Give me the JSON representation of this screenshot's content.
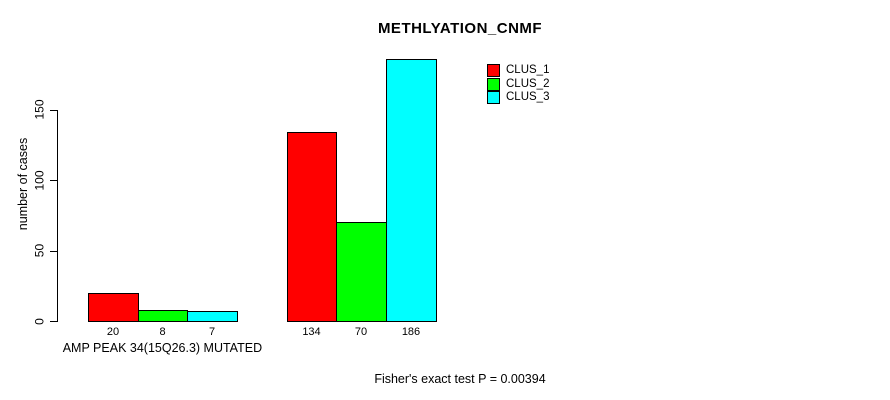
{
  "title": "METHLYATION_CNMF",
  "footer": "Fisher's exact test P = 0.00394",
  "chart_data": {
    "type": "bar",
    "title": "METHLYATION_CNMF",
    "ylabel": "number of cases",
    "xlabel": "",
    "categories": [
      "AMP PEAK 34(15Q26.3) MUTATED",
      ""
    ],
    "series": [
      {
        "name": "CLUS_1",
        "color": "#ff0000",
        "values": [
          20,
          134
        ]
      },
      {
        "name": "CLUS_2",
        "color": "#00ff00",
        "values": [
          8,
          70
        ]
      },
      {
        "name": "CLUS_3",
        "color": "#00ffff",
        "values": [
          7,
          186
        ]
      }
    ],
    "bar_value_labels": [
      [
        20,
        8,
        7
      ],
      [
        134,
        70,
        186
      ]
    ],
    "yticks": [
      0,
      50,
      100,
      150
    ],
    "ylim": [
      0,
      195
    ],
    "grid": false,
    "bar_border_color": "#000000",
    "axis_color": "#000000",
    "legend_position": "top-right",
    "annotation": "Fisher's exact test P = 0.00394"
  }
}
